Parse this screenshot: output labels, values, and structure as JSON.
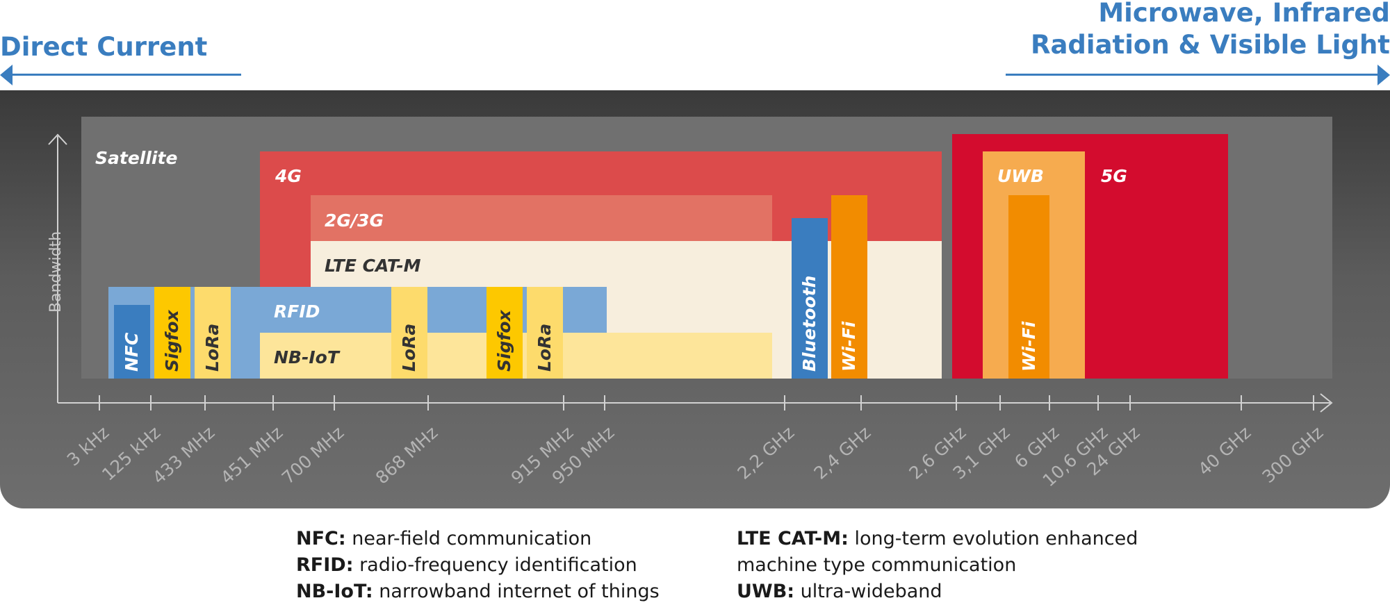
{
  "header": {
    "left": "Direct Current",
    "right_line1": "Microwave, Infrared",
    "right_line2": "Radiation & Visible Light"
  },
  "axis": {
    "y_label": "Bandwidth"
  },
  "ticks": [
    "3 kHz",
    "125 kHz",
    "433 MHz",
    "451 MHz",
    "700 MHz",
    "868 MHz",
    "915 MHz",
    "950 MHz",
    "2,2 GHz",
    "2,4 GHz",
    "2,6 GHz",
    "3,1 GHz",
    "6 GHz",
    "10,6 GHz",
    "24 GHz",
    "40 GHz",
    "300 GHz"
  ],
  "bands": {
    "satellite": "Satellite",
    "g4": "4G",
    "g23": "2G/3G",
    "ltecatm": "LTE CAT-M",
    "rfid": "RFID",
    "nbiot": "NB-IoT",
    "nfc": "NFC",
    "sigfox1": "Sigfox",
    "lora1": "LoRa",
    "lora2": "LoRa",
    "sigfox2": "Sigfox",
    "lora3": "LoRa",
    "bluetooth": "Bluetooth",
    "wifi1": "Wi-Fi",
    "uwb": "UWB",
    "g5": "5G",
    "wifi2": "Wi-Fi"
  },
  "colors": {
    "blue": "#3a7dbf",
    "satellite": "#707070",
    "g4": "#dc4b4b",
    "g23": "#e27264",
    "ltecatm": "#f7eedd",
    "rfid": "#7aa8d6",
    "nbiot": "#fde59a",
    "nfc": "#3a7dbf",
    "sigfox": "#fdc800",
    "lora": "#fddb6c",
    "bluetooth": "#3a7dbf",
    "wifi": "#f28c00",
    "uwb": "#f6ab4f",
    "g5": "#d30c2e"
  },
  "legend": {
    "left": [
      {
        "abbr": "NFC:",
        "text": " near-field communication"
      },
      {
        "abbr": "RFID:",
        "text": " radio-frequency identification"
      },
      {
        "abbr": "NB-IoT:",
        "text": " narrowband internet of things"
      }
    ],
    "right": [
      {
        "abbr": "LTE CAT-M:",
        "text": " long-term evolution enhanced"
      },
      {
        "abbr": "",
        "text": "machine type communication"
      },
      {
        "abbr": "UWB:",
        "text": " ultra-wideband"
      }
    ]
  }
}
